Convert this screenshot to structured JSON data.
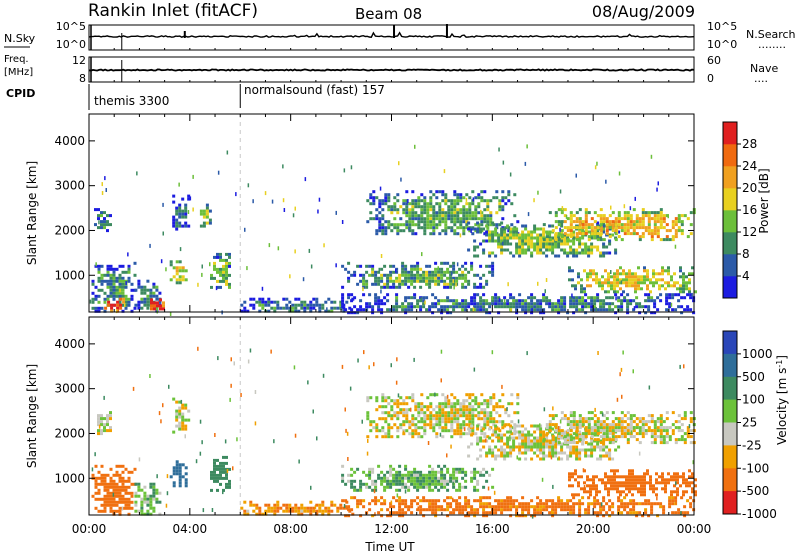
{
  "header": {
    "station": "Rankin Inlet (fitACF)",
    "beam": "Beam 08",
    "date": "08/Aug/2009"
  },
  "strips": {
    "nsky_label": "N.Sky",
    "nsky_ticks": [
      "10^5",
      "10^0"
    ],
    "nsearch_label": "N.Search",
    "nsearch_ticks": [
      "10^5",
      "10^0"
    ],
    "nsearch_line": "........",
    "freq_label_1": "Freq.",
    "freq_label_2": "[MHz]",
    "freq_ticks": [
      "12",
      "8"
    ],
    "nave_label": "Nave",
    "nave_ticks": [
      "60",
      "0"
    ],
    "nave_line": "....",
    "cpid_label": "CPID",
    "cpid_modes": [
      {
        "text": "themis 3300",
        "start_hour": 0.5
      },
      {
        "text": "normalsound (fast) 157",
        "start_hour": 6
      }
    ],
    "cpid_change_hours": [
      1.3,
      6
    ]
  },
  "axes": {
    "ylabel": "Slant Range [km]",
    "yticks": [
      "1000",
      "2000",
      "3000",
      "4000"
    ],
    "xticks": [
      "00:00",
      "04:00",
      "08:00",
      "12:00",
      "16:00",
      "20:00",
      "00:00"
    ],
    "xlabel": "Time UT"
  },
  "power_bar": {
    "label": "Power [dB]",
    "ticks": [
      "4",
      "8",
      "12",
      "16",
      "20",
      "24",
      "28"
    ],
    "colors": [
      "#1c1ce0",
      "#2b5aa8",
      "#3d8a60",
      "#6cbf3a",
      "#e8d020",
      "#f0a020",
      "#f06a10",
      "#e02020"
    ]
  },
  "velocity_bar": {
    "label": "Velocity [m s-1]",
    "label_main": "Velocity [m s",
    "label_sup": "-1",
    "label_end": "]",
    "ticks": [
      "1000",
      "500",
      "100",
      "25",
      "-25",
      "-100",
      "-500",
      "-1000"
    ],
    "colors": [
      "#2a46b8",
      "#2f6e9a",
      "#3d8a60",
      "#6cc23a",
      "#c8c8c0",
      "#f0a000",
      "#f07010",
      "#e02020"
    ]
  },
  "chart_data": [
    {
      "type": "heatmap",
      "title": "",
      "xlabel": "Time UT",
      "ylabel": "Slant Range [km]",
      "xlim": [
        0,
        24
      ],
      "ylim": [
        180,
        4600
      ],
      "colorbar_label": "Power [dB]",
      "colorbar_ticks": [
        4,
        8,
        12,
        16,
        20,
        24,
        28
      ],
      "regions": [
        {
          "t": [
            0.1,
            1.8
          ],
          "range": [
            180,
            1300
          ],
          "power_db": 10
        },
        {
          "t": [
            0.2,
            0.9
          ],
          "range": [
            2000,
            2500
          ],
          "power_db": 8
        },
        {
          "t": [
            0.6,
            1.4
          ],
          "range": [
            200,
            500
          ],
          "power_db": 30
        },
        {
          "t": [
            1.8,
            2.8
          ],
          "range": [
            180,
            900
          ],
          "power_db": 10
        },
        {
          "t": [
            2.3,
            2.9
          ],
          "range": [
            200,
            550
          ],
          "power_db": 30
        },
        {
          "t": [
            3.2,
            3.8
          ],
          "range": [
            800,
            1400
          ],
          "power_db": 18
        },
        {
          "t": [
            3.3,
            3.9
          ],
          "range": [
            2000,
            2800
          ],
          "power_db": 6
        },
        {
          "t": [
            4.4,
            4.8
          ],
          "range": [
            2100,
            2600
          ],
          "power_db": 14
        },
        {
          "t": [
            4.8,
            5.6
          ],
          "range": [
            700,
            1500
          ],
          "power_db": 14
        },
        {
          "t": [
            6,
            10.5
          ],
          "range": [
            180,
            500
          ],
          "power_db": 8
        },
        {
          "t": [
            10,
            16
          ],
          "range": [
            700,
            1300
          ],
          "power_db": 12
        },
        {
          "t": [
            11,
            17
          ],
          "range": [
            1900,
            2900
          ],
          "power_db": 12
        },
        {
          "t": [
            15,
            21
          ],
          "range": [
            1400,
            2200
          ],
          "power_db": 14
        },
        {
          "t": [
            18,
            24
          ],
          "range": [
            1800,
            2500
          ],
          "power_db": 20
        },
        {
          "t": [
            19,
            24
          ],
          "range": [
            650,
            1200
          ],
          "power_db": 18
        },
        {
          "t": [
            10,
            24
          ],
          "range": [
            180,
            600
          ],
          "power_db": 8
        }
      ]
    },
    {
      "type": "heatmap",
      "title": "",
      "xlabel": "Time UT",
      "ylabel": "Slant Range [km]",
      "xlim": [
        0,
        24
      ],
      "ylim": [
        180,
        4600
      ],
      "colorbar_label": "Velocity [m s-1]",
      "colorbar_ticks": [
        1000,
        500,
        100,
        25,
        -25,
        -100,
        -500,
        -1000
      ],
      "regions": [
        {
          "t": [
            0.1,
            1.8
          ],
          "range": [
            180,
            1300
          ],
          "velocity": -300
        },
        {
          "t": [
            0.2,
            0.9
          ],
          "range": [
            2000,
            2500
          ],
          "velocity": 0
        },
        {
          "t": [
            1.8,
            2.8
          ],
          "range": [
            180,
            900
          ],
          "velocity": 80
        },
        {
          "t": [
            3.2,
            3.8
          ],
          "range": [
            800,
            1400
          ],
          "velocity": 900
        },
        {
          "t": [
            3.3,
            3.9
          ],
          "range": [
            2000,
            2800
          ],
          "velocity": 0
        },
        {
          "t": [
            4.8,
            5.6
          ],
          "range": [
            700,
            1500
          ],
          "velocity": 200
        },
        {
          "t": [
            6,
            10.5
          ],
          "range": [
            180,
            500
          ],
          "velocity": -100
        },
        {
          "t": [
            10,
            16
          ],
          "range": [
            700,
            1300
          ],
          "velocity": 80
        },
        {
          "t": [
            11,
            17
          ],
          "range": [
            1900,
            2900
          ],
          "velocity": 0
        },
        {
          "t": [
            15,
            21
          ],
          "range": [
            1400,
            2200
          ],
          "velocity": 0
        },
        {
          "t": [
            18,
            24
          ],
          "range": [
            1800,
            2500
          ],
          "velocity": 0
        },
        {
          "t": [
            19,
            24
          ],
          "range": [
            650,
            1200
          ],
          "velocity": -300
        },
        {
          "t": [
            10,
            24
          ],
          "range": [
            180,
            600
          ],
          "velocity": -150
        }
      ]
    }
  ]
}
